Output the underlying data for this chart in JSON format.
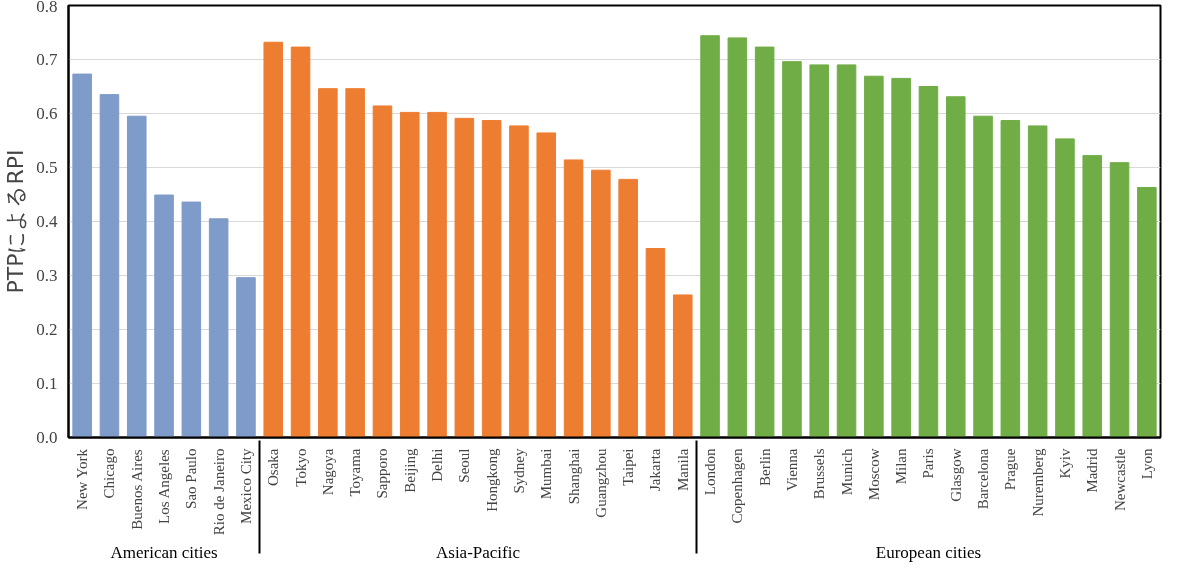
{
  "chart_data": {
    "type": "bar",
    "ylabel": "PTPによるRPI",
    "categories": [
      "New York",
      "Chicago",
      "Buenos Aires",
      "Los Angeles",
      "Sao Paulo",
      "Rio de Janeiro",
      "Mexico City",
      "Osaka",
      "Tokyo",
      "Nagoya",
      "Toyama",
      "Sapporo",
      "Beijing",
      "Delhi",
      "Seoul",
      "Hongkong",
      "Sydney",
      "Mumbai",
      "Shanghai",
      "Guangzhou",
      "Taipei",
      "Jakarta",
      "Manila",
      "London",
      "Copenhagen",
      "Berlin",
      "Vienna",
      "Brussels",
      "Munich",
      "Moscow",
      "Milan",
      "Paris",
      "Glasgow",
      "Barcelona",
      "Prague",
      "Nuremberg",
      "Kyiv",
      "Madrid",
      "Newcastle",
      "Lyon"
    ],
    "series": [
      {
        "color": "#7f9bc9",
        "values": [
          0.673,
          0.635,
          0.595,
          0.449,
          0.436,
          0.405,
          0.296,
          null,
          null,
          null,
          null,
          null,
          null,
          null,
          null,
          null,
          null,
          null,
          null,
          null,
          null,
          null,
          null,
          null,
          null,
          null,
          null,
          null,
          null,
          null,
          null,
          null,
          null,
          null,
          null,
          null,
          null,
          null,
          null,
          null
        ]
      },
      {
        "color": "#ed7d31",
        "values": [
          null,
          null,
          null,
          null,
          null,
          null,
          null,
          0.732,
          0.723,
          0.646,
          0.646,
          0.614,
          0.602,
          0.602,
          0.591,
          0.587,
          0.577,
          0.564,
          0.514,
          0.495,
          0.478,
          0.35,
          0.264,
          null,
          null,
          null,
          null,
          null,
          null,
          null,
          null,
          null,
          null,
          null,
          null,
          null,
          null,
          null,
          null,
          null
        ]
      },
      {
        "color": "#70ad47",
        "values": [
          null,
          null,
          null,
          null,
          null,
          null,
          null,
          null,
          null,
          null,
          null,
          null,
          null,
          null,
          null,
          null,
          null,
          null,
          null,
          null,
          null,
          null,
          null,
          0.744,
          0.74,
          0.723,
          0.696,
          0.69,
          0.69,
          0.669,
          0.665,
          0.65,
          0.631,
          0.595,
          0.587,
          0.577,
          0.553,
          0.522,
          0.509,
          0.463
        ]
      }
    ],
    "ylim": [
      0,
      0.8
    ],
    "yticks": [
      {
        "value": 0,
        "label": "0.0"
      },
      {
        "value": 0.1,
        "label": "0.1"
      },
      {
        "value": 0.2,
        "label": "0.2"
      },
      {
        "value": 0.3,
        "label": "0.3"
      },
      {
        "value": 0.4,
        "label": "0.4"
      },
      {
        "value": 0.5,
        "label": "0.5"
      },
      {
        "value": 0.6,
        "label": "0.6"
      },
      {
        "value": 0.7,
        "label": "0.7"
      },
      {
        "value": 0.8,
        "label": "0.8"
      }
    ],
    "annotations": [
      "American cities",
      "Asia-Pacific",
      "European cities"
    ],
    "grid": "y"
  }
}
